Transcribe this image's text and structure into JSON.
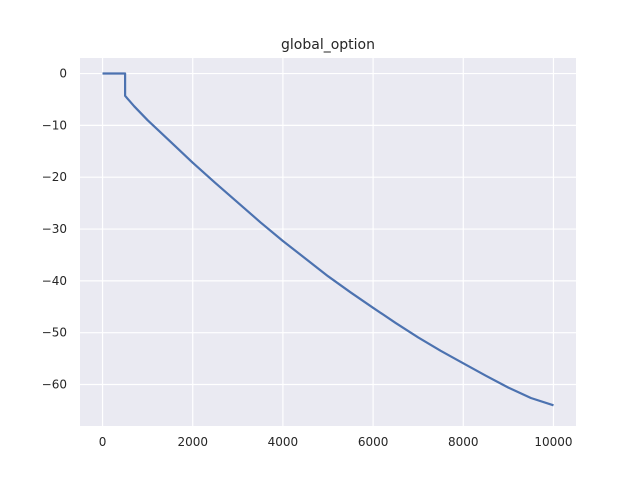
{
  "chart_data": {
    "type": "line",
    "title": "global_option",
    "xlabel": "",
    "ylabel": "",
    "xlim": [
      -500,
      10500
    ],
    "ylim": [
      -68,
      3
    ],
    "grid": true,
    "x_ticks": [
      0,
      2000,
      4000,
      6000,
      8000,
      10000
    ],
    "y_ticks": [
      0,
      -10,
      -20,
      -30,
      -40,
      -50,
      -60
    ],
    "x_tick_labels": [
      "0",
      "2000",
      "4000",
      "6000",
      "8000",
      "10000"
    ],
    "y_tick_labels": [
      "0",
      "−10",
      "−20",
      "−30",
      "−40",
      "−50",
      "−60"
    ],
    "series": [
      {
        "color": "#4c72b0",
        "x": [
          0,
          500,
          500,
          700,
          1000,
          1500,
          2000,
          2500,
          3000,
          3500,
          4000,
          4500,
          5000,
          5500,
          6000,
          6500,
          7000,
          7500,
          8000,
          8500,
          9000,
          9500,
          10000
        ],
        "y": [
          0,
          0,
          -4.3,
          -6.3,
          -9.0,
          -13.1,
          -17.2,
          -21.1,
          -24.9,
          -28.7,
          -32.3,
          -35.7,
          -39.1,
          -42.2,
          -45.2,
          -48.1,
          -50.9,
          -53.5,
          -55.9,
          -58.3,
          -60.6,
          -62.6,
          -64.0
        ]
      }
    ]
  }
}
